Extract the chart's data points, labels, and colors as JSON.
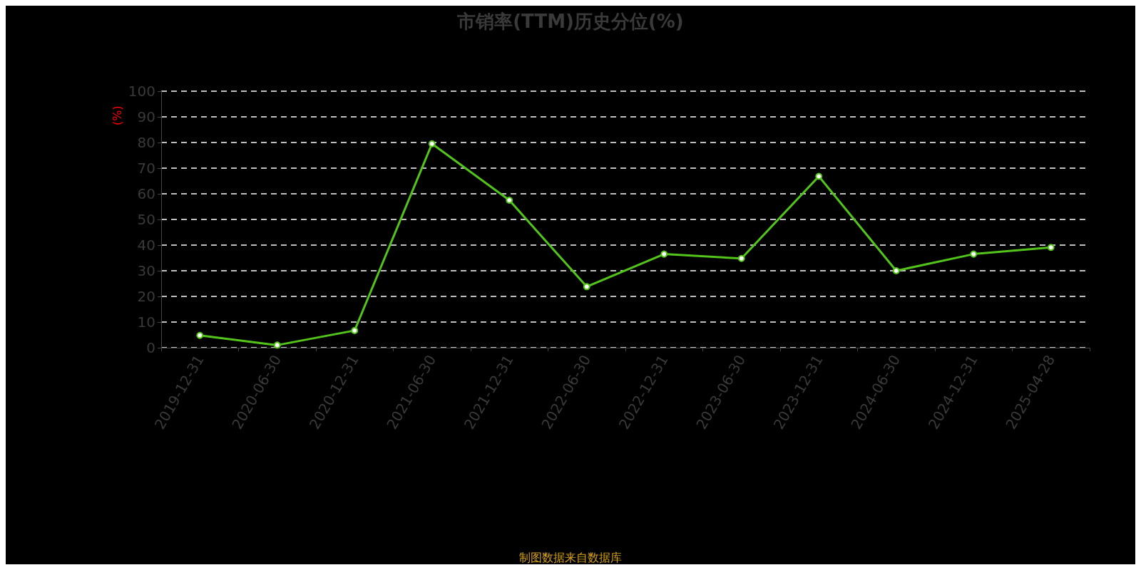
{
  "chart_data": {
    "type": "line",
    "title": "市销率(TTM)历史分位(%)",
    "ylabel": "(%)",
    "categories": [
      "2019-12-31",
      "2020-06-30",
      "2020-12-31",
      "2021-06-30",
      "2021-12-31",
      "2022-06-30",
      "2022-12-31",
      "2023-06-30",
      "2023-12-31",
      "2024-06-30",
      "2024-12-31",
      "2025-04-28"
    ],
    "series": [
      {
        "color": "#52c41a",
        "values": [
          4.8,
          1.0,
          6.7,
          79.5,
          57.5,
          23.8,
          36.5,
          34.8,
          66.8,
          30.0,
          36.5,
          39.1
        ]
      }
    ],
    "ylim": [
      0,
      100
    ],
    "yticks": [
      0,
      10,
      20,
      30,
      40,
      50,
      60,
      70,
      80,
      90,
      100
    ],
    "grid": "y",
    "marker": "circle",
    "line_style": "solid",
    "annotations": [
      "制图数据来自数据库"
    ]
  }
}
